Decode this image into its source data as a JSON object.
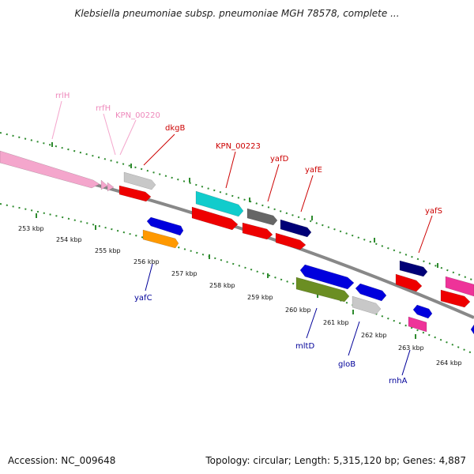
{
  "title": "Klebsiella pneumoniae subsp. pneumoniae MGH 78578, complete ...",
  "footer": {
    "accession": "Accession: NC_009648",
    "summary": "Topology: circular; Length: 5,315,120 bp; Genes: 4,887"
  },
  "colors": {
    "backbone": "#808080",
    "tick": "#2e8b2e",
    "label_top": "#cc0000",
    "label_top_rna": "#ee88bb",
    "label_bottom": "#000099"
  },
  "ruler": {
    "unit": "kbp",
    "labels": [
      "253 kbp",
      "254 kbp",
      "255 kbp",
      "256 kbp",
      "257 kbp",
      "258 kbp",
      "259 kbp",
      "260 kbp",
      "261 kbp",
      "262 kbp",
      "263 kbp",
      "264 kbp"
    ]
  },
  "features": [
    {
      "id": "f-rrl",
      "color": "#f4a6cc"
    },
    {
      "id": "f-rrf",
      "color": "#f4a6cc"
    },
    {
      "id": "f-kpn220-grey",
      "color": "#c8c8c8"
    },
    {
      "id": "f-kpn220-red",
      "color": "#ee0000"
    },
    {
      "id": "f-yafc-blue",
      "color": "#0000dd"
    },
    {
      "id": "f-yafc-orange",
      "color": "#ff9900"
    },
    {
      "id": "f-cyan",
      "color": "#11cccc"
    },
    {
      "id": "f-red2",
      "color": "#ee0000"
    },
    {
      "id": "f-darkgrey",
      "color": "#666666"
    },
    {
      "id": "f-red3",
      "color": "#ee0000"
    },
    {
      "id": "f-navy",
      "color": "#000077"
    },
    {
      "id": "f-red4",
      "color": "#ee0000"
    },
    {
      "id": "f-mltd",
      "color": "#0000dd"
    },
    {
      "id": "f-olive",
      "color": "#6b8e23"
    },
    {
      "id": "f-glob",
      "color": "#0000dd"
    },
    {
      "id": "f-grey2",
      "color": "#c8c8c8"
    },
    {
      "id": "f-navy2",
      "color": "#000077"
    },
    {
      "id": "f-red5",
      "color": "#ee0000"
    },
    {
      "id": "f-rnha-blue",
      "color": "#0000dd"
    },
    {
      "id": "f-rnha-pink",
      "color": "#ee3399"
    },
    {
      "id": "f-pink-right",
      "color": "#ee3399"
    },
    {
      "id": "f-red-right",
      "color": "#ee0000"
    }
  ],
  "gene_labels_top": [
    "rrlH",
    "rrfH",
    "KPN_00220",
    "dkgB",
    "KPN_00223",
    "yafD",
    "yafE",
    "yafS"
  ],
  "gene_labels_bottom": [
    "yafC",
    "mltD",
    "gloB",
    "rnhA"
  ]
}
